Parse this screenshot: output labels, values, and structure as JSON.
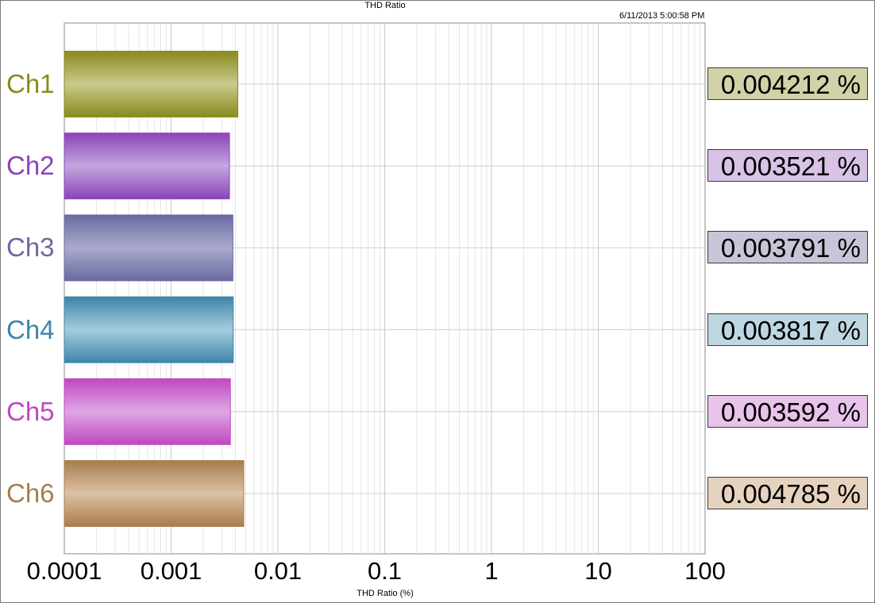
{
  "chart_data": {
    "type": "bar",
    "orientation": "horizontal",
    "title": "THD Ratio",
    "timestamp": "6/11/2013 5:00:58 PM",
    "xlabel": "THD Ratio (%)",
    "xscale": "log",
    "xlim": [
      0.0001,
      100
    ],
    "xticks": [
      "0.0001",
      "0.001",
      "0.01",
      "0.1",
      "1",
      "10",
      "100"
    ],
    "grid": true,
    "categories": [
      "Ch1",
      "Ch2",
      "Ch3",
      "Ch4",
      "Ch5",
      "Ch6"
    ],
    "values": [
      0.004212,
      0.003521,
      0.003791,
      0.003817,
      0.003592,
      0.004785
    ],
    "value_labels": [
      "0.004212 %",
      "0.003521 %",
      "0.003791 %",
      "0.003817 %",
      "0.003592 %",
      "0.004785 %"
    ],
    "colors": [
      "#8a8a1e",
      "#8a44b8",
      "#6a6aa2",
      "#3f84aa",
      "#c048c2",
      "#a87c4e"
    ],
    "bar_fill_colors": [
      "#c9ca8c",
      "#c4a6de",
      "#aaaacc",
      "#a6ccdc",
      "#dea6e4",
      "#dcc2a4"
    ],
    "label_box_colors": [
      "#d2d1a8",
      "#d8c3e6",
      "#c6c6d8",
      "#bfd7e3",
      "#e8c3ea",
      "#e6d3bf"
    ]
  },
  "logo": {
    "icon": "ap-logo-icon",
    "color": "#1a5bd6"
  }
}
